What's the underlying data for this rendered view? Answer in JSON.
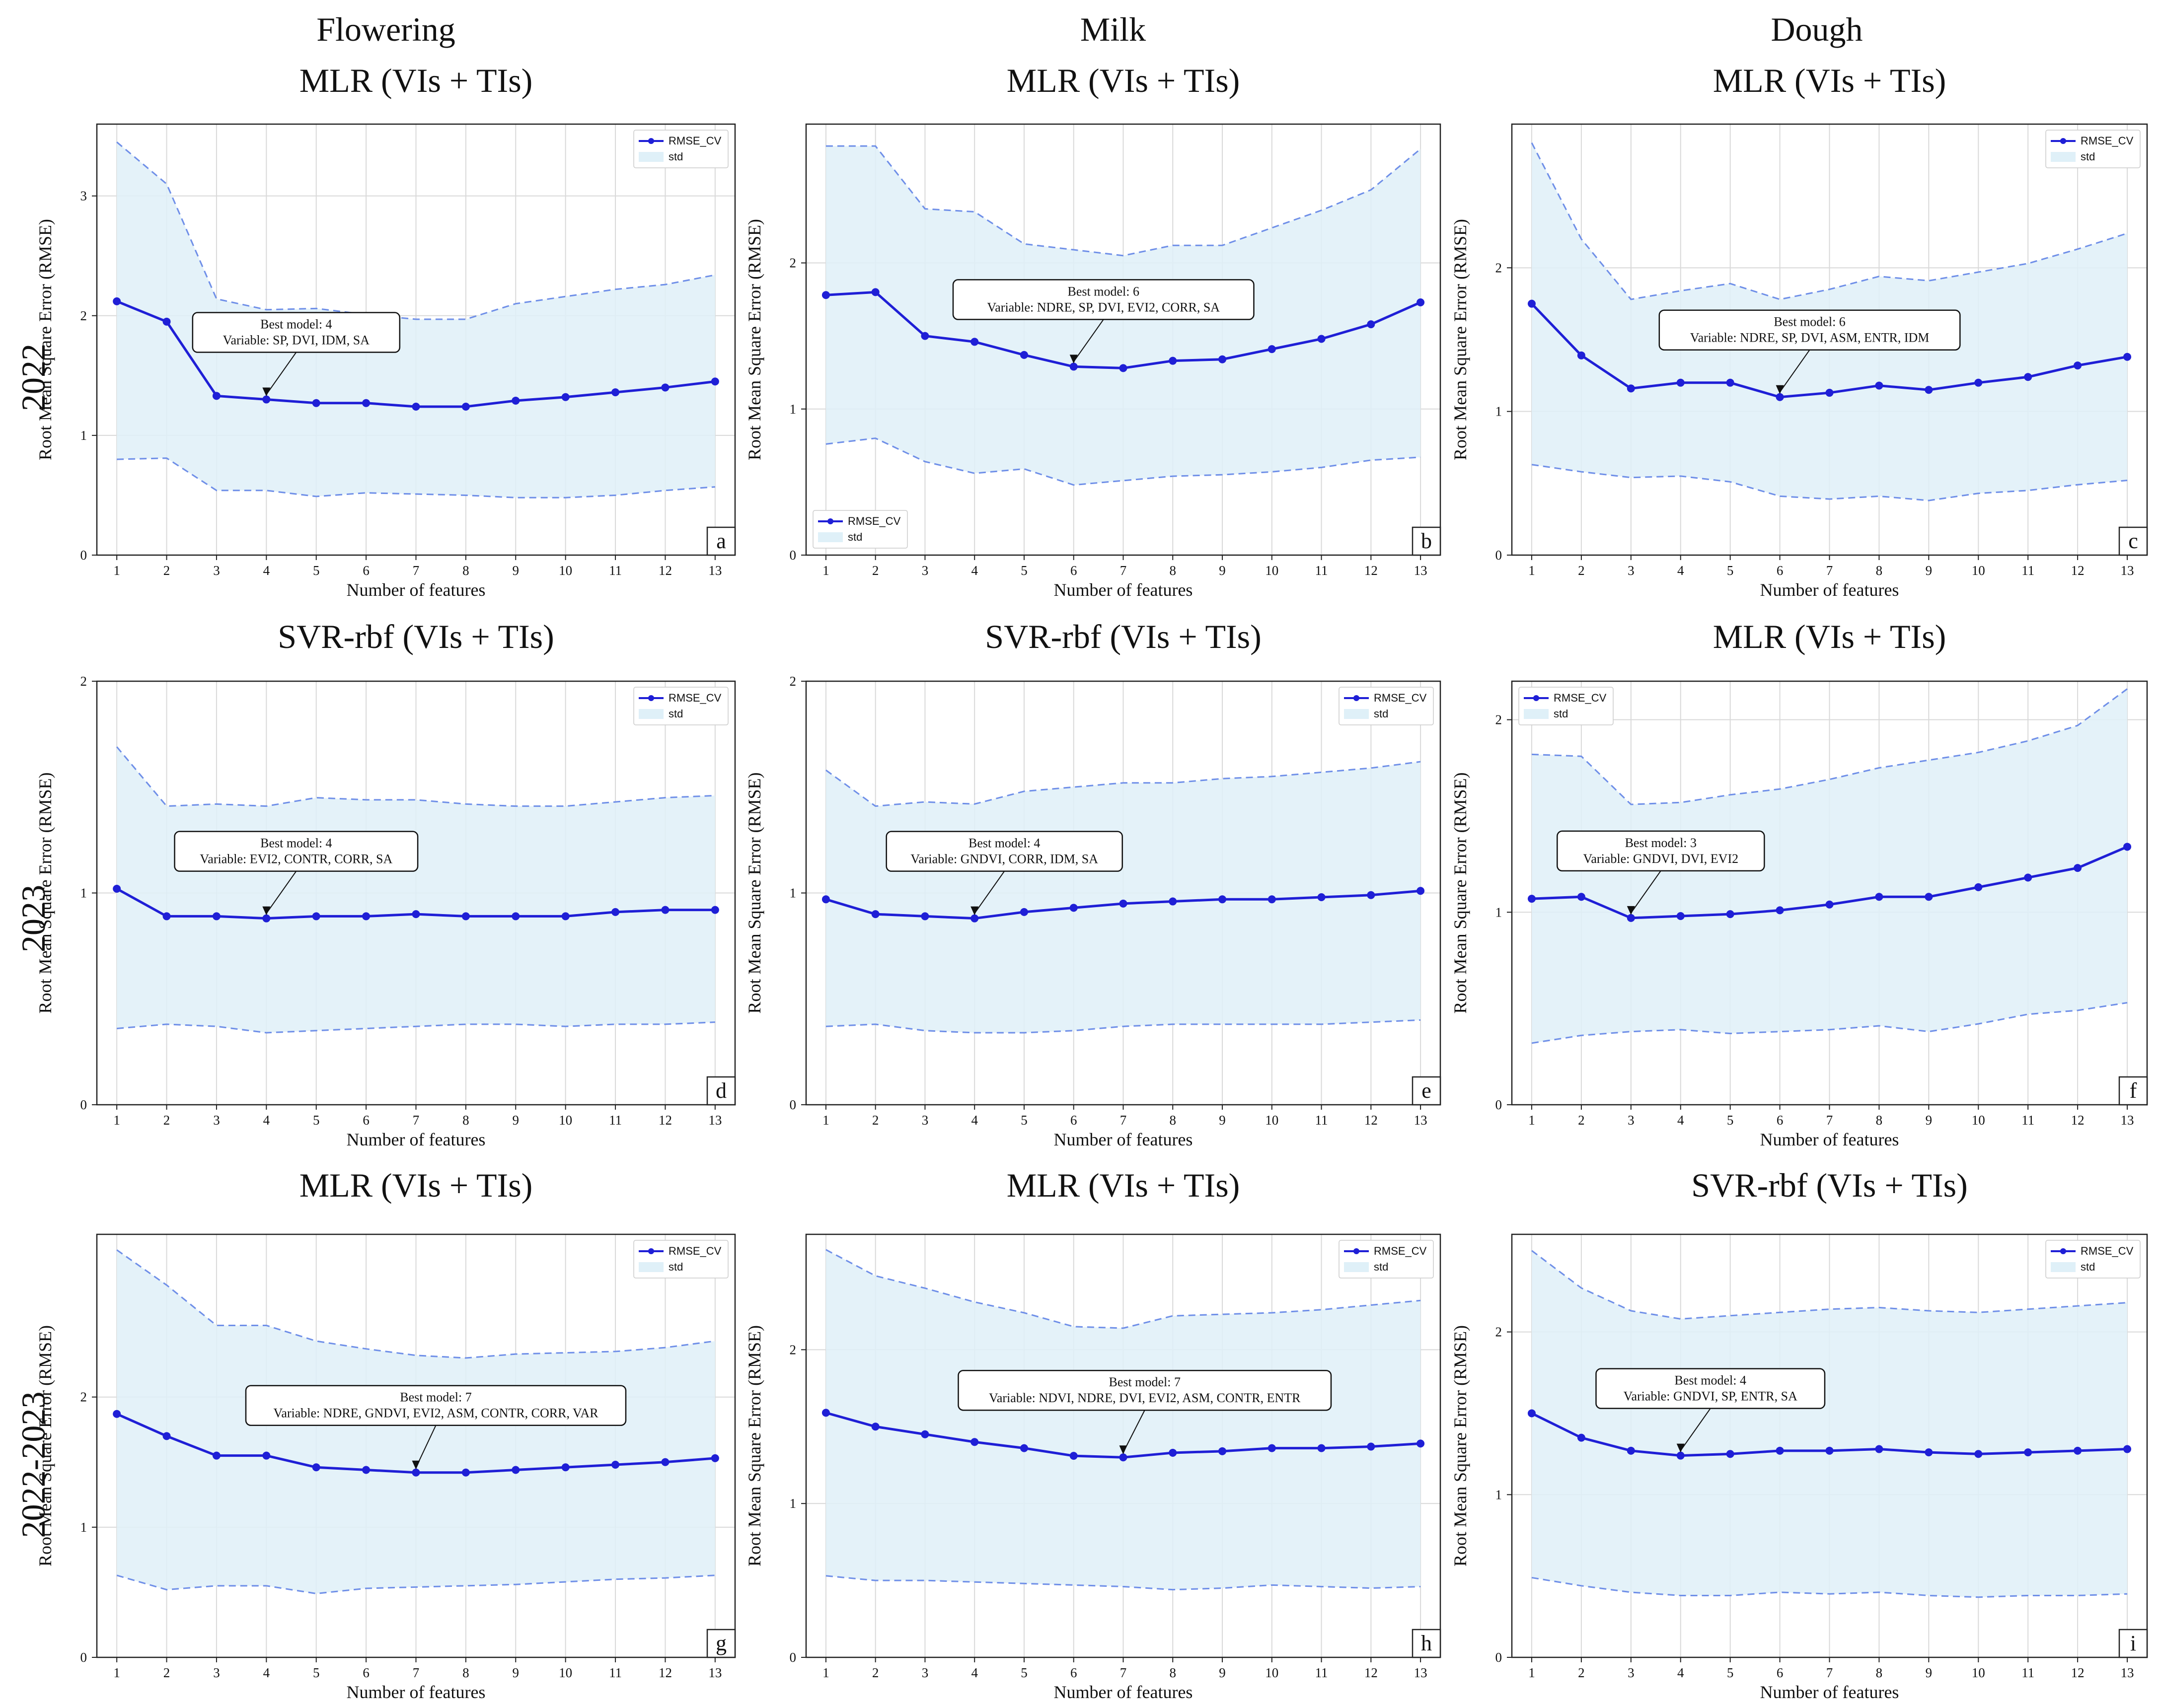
{
  "columns": [
    "Flowering",
    "Milk",
    "Dough"
  ],
  "rows": [
    "2022",
    "2023",
    "2022-2023"
  ],
  "colors": {
    "line": "#1f1fd6",
    "fill": "#dff0f8",
    "dash": "#6f8fe8",
    "grid": "#d9d9d9"
  },
  "legend": {
    "line": "RMSE_CV",
    "band": "std"
  },
  "chart_data": [
    {
      "id": "a",
      "type": "line",
      "title": "MLR (VIs + TIs)",
      "xlabel": "Number of features",
      "ylabel": "Root Mean Square Error (RMSE)",
      "x": [
        1,
        2,
        3,
        4,
        5,
        6,
        7,
        8,
        9,
        10,
        11,
        12,
        13
      ],
      "ylim": [
        0,
        3.6
      ],
      "yticks": [
        "0",
        "1",
        "2",
        "3"
      ],
      "ytick_values": [
        0,
        1,
        2,
        3
      ],
      "series": [
        {
          "name": "RMSE_CV",
          "values": [
            2.12,
            1.95,
            1.33,
            1.3,
            1.27,
            1.27,
            1.24,
            1.24,
            1.29,
            1.32,
            1.36,
            1.4,
            1.45
          ]
        },
        {
          "name": "std_upper",
          "values": [
            3.45,
            3.1,
            2.14,
            2.05,
            2.06,
            2.01,
            1.97,
            1.97,
            2.1,
            2.16,
            2.22,
            2.26,
            2.34
          ]
        },
        {
          "name": "std_lower",
          "values": [
            0.8,
            0.81,
            0.54,
            0.54,
            0.49,
            0.52,
            0.51,
            0.5,
            0.48,
            0.48,
            0.5,
            0.54,
            0.57
          ]
        }
      ],
      "legend_pos": "top-right",
      "annotation": {
        "line1": "Best model: 4",
        "line2": "Variable: SP, DVI, IDM, SA",
        "x": 4
      }
    },
    {
      "id": "b",
      "type": "line",
      "title": "MLR (VIs  + TIs)",
      "xlabel": "Number of features",
      "ylabel": "Root Mean Square Error (RMSE)",
      "x": [
        1,
        2,
        3,
        4,
        5,
        6,
        7,
        8,
        9,
        10,
        11,
        12,
        13
      ],
      "ylim": [
        0,
        2.95
      ],
      "yticks": [
        "0",
        "1",
        "2"
      ],
      "ytick_values": [
        0,
        1,
        2
      ],
      "series": [
        {
          "name": "RMSE_CV",
          "values": [
            1.78,
            1.8,
            1.5,
            1.46,
            1.37,
            1.29,
            1.28,
            1.33,
            1.34,
            1.41,
            1.48,
            1.58,
            1.73
          ]
        },
        {
          "name": "std_upper",
          "values": [
            2.8,
            2.8,
            2.37,
            2.35,
            2.13,
            2.09,
            2.05,
            2.12,
            2.12,
            2.24,
            2.36,
            2.5,
            2.78
          ]
        },
        {
          "name": "std_lower",
          "values": [
            0.76,
            0.8,
            0.64,
            0.56,
            0.59,
            0.48,
            0.51,
            0.54,
            0.55,
            0.57,
            0.6,
            0.65,
            0.67
          ]
        }
      ],
      "legend_pos": "bottom-left",
      "annotation": {
        "line1": "Best model: 6",
        "line2": "Variable: NDRE, SP, DVI, EVI2, CORR, SA",
        "x": 6
      }
    },
    {
      "id": "c",
      "type": "line",
      "title": "MLR (VIs  + TIs)",
      "xlabel": "Number of features",
      "ylabel": "Root Mean Square Error (RMSE)",
      "x": [
        1,
        2,
        3,
        4,
        5,
        6,
        7,
        8,
        9,
        10,
        11,
        12,
        13
      ],
      "ylim": [
        0,
        3.0
      ],
      "yticks": [
        "0",
        "1",
        "2"
      ],
      "ytick_values": [
        0,
        1,
        2
      ],
      "series": [
        {
          "name": "RMSE_CV",
          "values": [
            1.75,
            1.39,
            1.16,
            1.2,
            1.2,
            1.1,
            1.13,
            1.18,
            1.15,
            1.2,
            1.24,
            1.32,
            1.38
          ]
        },
        {
          "name": "std_upper",
          "values": [
            2.87,
            2.2,
            1.78,
            1.84,
            1.89,
            1.78,
            1.85,
            1.94,
            1.91,
            1.97,
            2.03,
            2.13,
            2.24
          ]
        },
        {
          "name": "std_lower",
          "values": [
            0.63,
            0.58,
            0.54,
            0.55,
            0.51,
            0.41,
            0.39,
            0.41,
            0.38,
            0.43,
            0.45,
            0.49,
            0.52
          ]
        }
      ],
      "legend_pos": "top-right",
      "annotation": {
        "line1": "Best model: 6",
        "line2": "Variable: NDRE, SP, DVI, ASM, ENTR, IDM",
        "x": 6
      }
    },
    {
      "id": "d",
      "type": "line",
      "title": "SVR-rbf (VIs + TIs)",
      "xlabel": "Number of features",
      "ylabel": "Root Mean Square Error (RMSE)",
      "x": [
        1,
        2,
        3,
        4,
        5,
        6,
        7,
        8,
        9,
        10,
        11,
        12,
        13
      ],
      "ylim": [
        0,
        2.0
      ],
      "yticks": [
        "0",
        "1",
        "2"
      ],
      "ytick_values": [
        0,
        1,
        2
      ],
      "series": [
        {
          "name": "RMSE_CV",
          "values": [
            1.02,
            0.89,
            0.89,
            0.88,
            0.89,
            0.89,
            0.9,
            0.89,
            0.89,
            0.89,
            0.91,
            0.92,
            0.92
          ]
        },
        {
          "name": "std_upper",
          "values": [
            1.69,
            1.41,
            1.42,
            1.41,
            1.45,
            1.44,
            1.44,
            1.42,
            1.41,
            1.41,
            1.43,
            1.45,
            1.46
          ]
        },
        {
          "name": "std_lower",
          "values": [
            0.36,
            0.38,
            0.37,
            0.34,
            0.35,
            0.36,
            0.37,
            0.38,
            0.38,
            0.37,
            0.38,
            0.38,
            0.39
          ]
        }
      ],
      "legend_pos": "top-right",
      "annotation": {
        "line1": "Best model: 4",
        "line2": "Variable: EVI2, CONTR, CORR, SA",
        "x": 4
      }
    },
    {
      "id": "e",
      "type": "line",
      "title": "SVR-rbf (VIs  + TIs)",
      "xlabel": "Number of features",
      "ylabel": "Root Mean Square Error (RMSE)",
      "x": [
        1,
        2,
        3,
        4,
        5,
        6,
        7,
        8,
        9,
        10,
        11,
        12,
        13
      ],
      "ylim": [
        0,
        2.0
      ],
      "yticks": [
        "0",
        "1",
        "2"
      ],
      "ytick_values": [
        0,
        1,
        2
      ],
      "series": [
        {
          "name": "RMSE_CV",
          "values": [
            0.97,
            0.9,
            0.89,
            0.88,
            0.91,
            0.93,
            0.95,
            0.96,
            0.97,
            0.97,
            0.98,
            0.99,
            1.01
          ]
        },
        {
          "name": "std_upper",
          "values": [
            1.58,
            1.41,
            1.43,
            1.42,
            1.48,
            1.5,
            1.52,
            1.52,
            1.54,
            1.55,
            1.57,
            1.59,
            1.62
          ]
        },
        {
          "name": "std_lower",
          "values": [
            0.37,
            0.38,
            0.35,
            0.34,
            0.34,
            0.35,
            0.37,
            0.38,
            0.38,
            0.38,
            0.38,
            0.39,
            0.4
          ]
        }
      ],
      "legend_pos": "top-right",
      "annotation": {
        "line1": "Best model: 4",
        "line2": "Variable: GNDVI, CORR, IDM, SA",
        "x": 4
      }
    },
    {
      "id": "f",
      "type": "line",
      "title": "MLR (VIs  + TIs)",
      "xlabel": "Number of features",
      "ylabel": "Root Mean Square Error (RMSE)",
      "x": [
        1,
        2,
        3,
        4,
        5,
        6,
        7,
        8,
        9,
        10,
        11,
        12,
        13
      ],
      "ylim": [
        0,
        2.2
      ],
      "yticks": [
        "0",
        "1",
        "2"
      ],
      "ytick_values": [
        0,
        1,
        2
      ],
      "series": [
        {
          "name": "RMSE_CV",
          "values": [
            1.07,
            1.08,
            0.97,
            0.98,
            0.99,
            1.01,
            1.04,
            1.08,
            1.08,
            1.13,
            1.18,
            1.23,
            1.34
          ]
        },
        {
          "name": "std_upper",
          "values": [
            1.82,
            1.81,
            1.56,
            1.57,
            1.61,
            1.64,
            1.69,
            1.75,
            1.79,
            1.83,
            1.89,
            1.97,
            2.16
          ]
        },
        {
          "name": "std_lower",
          "values": [
            0.32,
            0.36,
            0.38,
            0.39,
            0.37,
            0.38,
            0.39,
            0.41,
            0.38,
            0.42,
            0.47,
            0.49,
            0.53
          ]
        }
      ],
      "legend_pos": "top-left",
      "annotation": {
        "line1": "Best model: 3",
        "line2": "Variable: GNDVI, DVI, EVI2",
        "x": 3
      }
    },
    {
      "id": "g",
      "type": "line",
      "title": "MLR (VIs + TIs)",
      "xlabel": "Number of features",
      "ylabel": "Root Mean Square Error (RMSE)",
      "x": [
        1,
        2,
        3,
        4,
        5,
        6,
        7,
        8,
        9,
        10,
        11,
        12,
        13
      ],
      "ylim": [
        0,
        3.25
      ],
      "yticks": [
        "0",
        "1",
        "2"
      ],
      "ytick_values": [
        0,
        1,
        2
      ],
      "series": [
        {
          "name": "RMSE_CV",
          "values": [
            1.87,
            1.7,
            1.55,
            1.55,
            1.46,
            1.44,
            1.42,
            1.42,
            1.44,
            1.46,
            1.48,
            1.5,
            1.53
          ]
        },
        {
          "name": "std_upper",
          "values": [
            3.13,
            2.86,
            2.55,
            2.55,
            2.43,
            2.37,
            2.32,
            2.3,
            2.33,
            2.34,
            2.35,
            2.38,
            2.43
          ]
        },
        {
          "name": "std_lower",
          "values": [
            0.63,
            0.52,
            0.55,
            0.55,
            0.49,
            0.53,
            0.54,
            0.55,
            0.56,
            0.58,
            0.6,
            0.61,
            0.63
          ]
        }
      ],
      "legend_pos": "top-right",
      "annotation": {
        "line1": "Best model: 7",
        "line2": "Variable: NDRE, GNDVI, EVI2, ASM, CONTR, CORR, VAR",
        "x": 7
      }
    },
    {
      "id": "h",
      "type": "line",
      "title": "MLR (VIs  + TIs)",
      "xlabel": "Number of features",
      "ylabel": "Root Mean Square Error (RMSE)",
      "x": [
        1,
        2,
        3,
        4,
        5,
        6,
        7,
        8,
        9,
        10,
        11,
        12,
        13
      ],
      "ylim": [
        0,
        2.75
      ],
      "yticks": [
        "0",
        "1",
        "2"
      ],
      "ytick_values": [
        0,
        1,
        2
      ],
      "series": [
        {
          "name": "RMSE_CV",
          "values": [
            1.59,
            1.5,
            1.45,
            1.4,
            1.36,
            1.31,
            1.3,
            1.33,
            1.34,
            1.36,
            1.36,
            1.37,
            1.39
          ]
        },
        {
          "name": "std_upper",
          "values": [
            2.65,
            2.48,
            2.4,
            2.31,
            2.24,
            2.15,
            2.14,
            2.22,
            2.23,
            2.24,
            2.26,
            2.29,
            2.32
          ]
        },
        {
          "name": "std_lower",
          "values": [
            0.53,
            0.5,
            0.5,
            0.49,
            0.48,
            0.47,
            0.46,
            0.44,
            0.45,
            0.47,
            0.46,
            0.45,
            0.46
          ]
        }
      ],
      "legend_pos": "top-right",
      "annotation": {
        "line1": "Best model: 7",
        "line2": "Variable: NDVI, NDRE, DVI, EVI2, ASM, CONTR, ENTR",
        "x": 7
      }
    },
    {
      "id": "i",
      "type": "line",
      "title": "SVR-rbf (VIs  + TIs)",
      "xlabel": "Number of features",
      "ylabel": "Root Mean Square Error (RMSE)",
      "x": [
        1,
        2,
        3,
        4,
        5,
        6,
        7,
        8,
        9,
        10,
        11,
        12,
        13
      ],
      "ylim": [
        0,
        2.6
      ],
      "yticks": [
        "0",
        "1",
        "2"
      ],
      "ytick_values": [
        0,
        1,
        2
      ],
      "series": [
        {
          "name": "RMSE_CV",
          "values": [
            1.5,
            1.35,
            1.27,
            1.24,
            1.25,
            1.27,
            1.27,
            1.28,
            1.26,
            1.25,
            1.26,
            1.27,
            1.28
          ]
        },
        {
          "name": "std_upper",
          "values": [
            2.5,
            2.27,
            2.13,
            2.08,
            2.1,
            2.12,
            2.14,
            2.15,
            2.13,
            2.12,
            2.14,
            2.16,
            2.18
          ]
        },
        {
          "name": "std_lower",
          "values": [
            0.49,
            0.44,
            0.4,
            0.38,
            0.38,
            0.4,
            0.39,
            0.4,
            0.38,
            0.37,
            0.38,
            0.38,
            0.39
          ]
        }
      ],
      "legend_pos": "top-right",
      "annotation": {
        "line1": "Best model: 4",
        "line2": "Variable: GNDVI, SP, ENTR, SA",
        "x": 4
      }
    }
  ]
}
